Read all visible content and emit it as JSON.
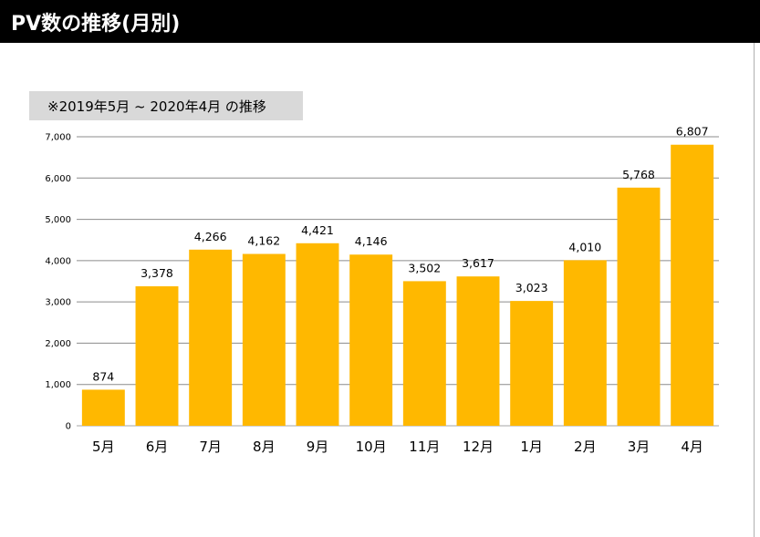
{
  "header": {
    "title": "PV数の推移(月別)"
  },
  "subtitle": "※2019年5月 ~ 2020年4月 の推移",
  "colors": {
    "bar": "#FFB800",
    "header_bg": "#000000",
    "subtitle_bg": "#D9D9D9",
    "gridline": "#8C8C8C"
  },
  "chart_data": {
    "type": "bar",
    "categories": [
      "5月",
      "6月",
      "7月",
      "8月",
      "9月",
      "10月",
      "11月",
      "12月",
      "1月",
      "2月",
      "3月",
      "4月"
    ],
    "values": [
      874,
      3378,
      4266,
      4162,
      4421,
      4146,
      3502,
      3617,
      3023,
      4010,
      5768,
      6807
    ],
    "value_labels": [
      "874",
      "3,378",
      "4,266",
      "4,162",
      "4,421",
      "4,146",
      "3,502",
      "3,617",
      "3,023",
      "4,010",
      "5,768",
      "6,807"
    ],
    "y_ticks": [
      0,
      1000,
      2000,
      3000,
      4000,
      5000,
      6000,
      7000
    ],
    "y_tick_labels": [
      "0",
      "1,000",
      "2,000",
      "3,000",
      "4,000",
      "5,000",
      "6,000",
      "7,000"
    ],
    "ylim": [
      0,
      7000
    ],
    "grid": true,
    "legend": "none",
    "title": "",
    "xlabel": "",
    "ylabel": ""
  }
}
